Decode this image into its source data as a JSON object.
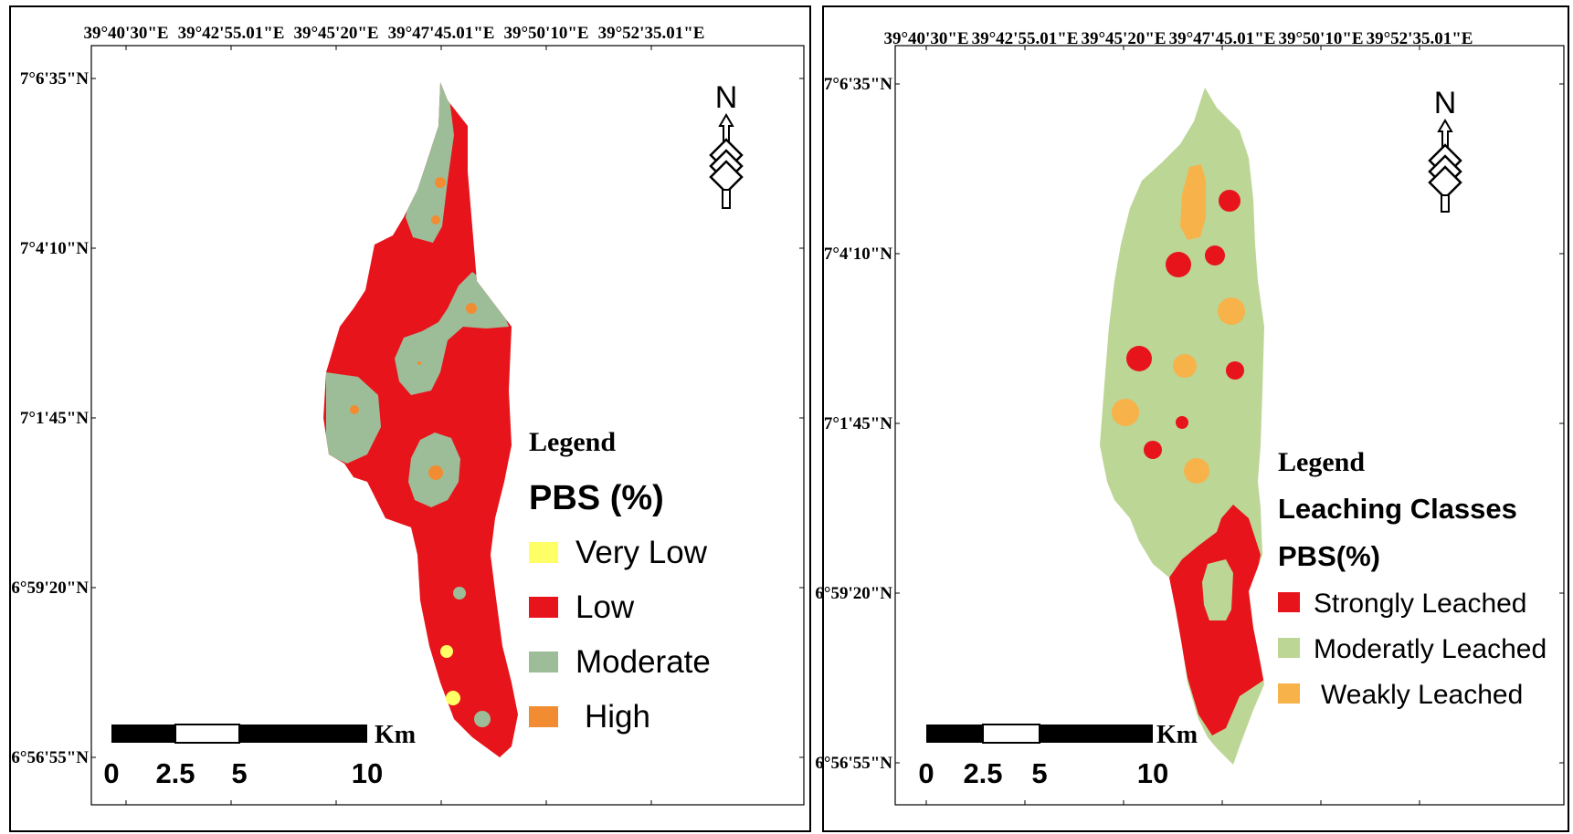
{
  "maps": [
    {
      "id": "pbs",
      "longitude_labels": [
        "39°40'30\"E",
        "39°42'55.01\"E",
        "39°45'20\"E",
        "39°47'45.01\"E",
        "39°50'10\"E",
        "39°52'35.01\"E"
      ],
      "latitude_labels": [
        "7°6'35\"N",
        "7°4'10\"N",
        "7°1'45\"N",
        "6°59'20\"N",
        "6°56'55\"N"
      ],
      "north_arrow_letter": "N",
      "legend": {
        "title": "Legend",
        "heading_lines": [
          "PBS (%)"
        ],
        "items": [
          {
            "label": "Very Low",
            "color": "#ffff66"
          },
          {
            "label": "Low",
            "color": "#e8141b"
          },
          {
            "label": "Moderate",
            "color": "#9dbd98"
          },
          {
            "label": "High",
            "color": "#f28c32"
          }
        ]
      },
      "scale_bar": {
        "unit": "Km",
        "labels": [
          "0",
          "2.5",
          "5",
          "10"
        ]
      }
    },
    {
      "id": "leaching",
      "longitude_labels": [
        "39°40'30\"E",
        "39°42'55.01\"E",
        "39°45'20\"E",
        "39°47'45.01\"E",
        "39°50'10\"E",
        "39°52'35.01\"E"
      ],
      "latitude_labels": [
        "7°6'35\"N",
        "7°4'10\"N",
        "7°1'45\"N",
        "6°59'20\"N",
        "6°56'55\"N"
      ],
      "north_arrow_letter": "N",
      "legend": {
        "title": "Legend",
        "heading_lines": [
          "Leaching Classes",
          "PBS(%)"
        ],
        "items": [
          {
            "label": "Strongly Leached",
            "color": "#e8141b"
          },
          {
            "label": "Moderatly Leached",
            "color": "#bcd696"
          },
          {
            "label": "Weakly Leached",
            "color": "#f7b24a"
          }
        ]
      },
      "scale_bar": {
        "unit": "Km",
        "labels": [
          "0",
          "2.5",
          "5",
          "10"
        ]
      }
    }
  ]
}
